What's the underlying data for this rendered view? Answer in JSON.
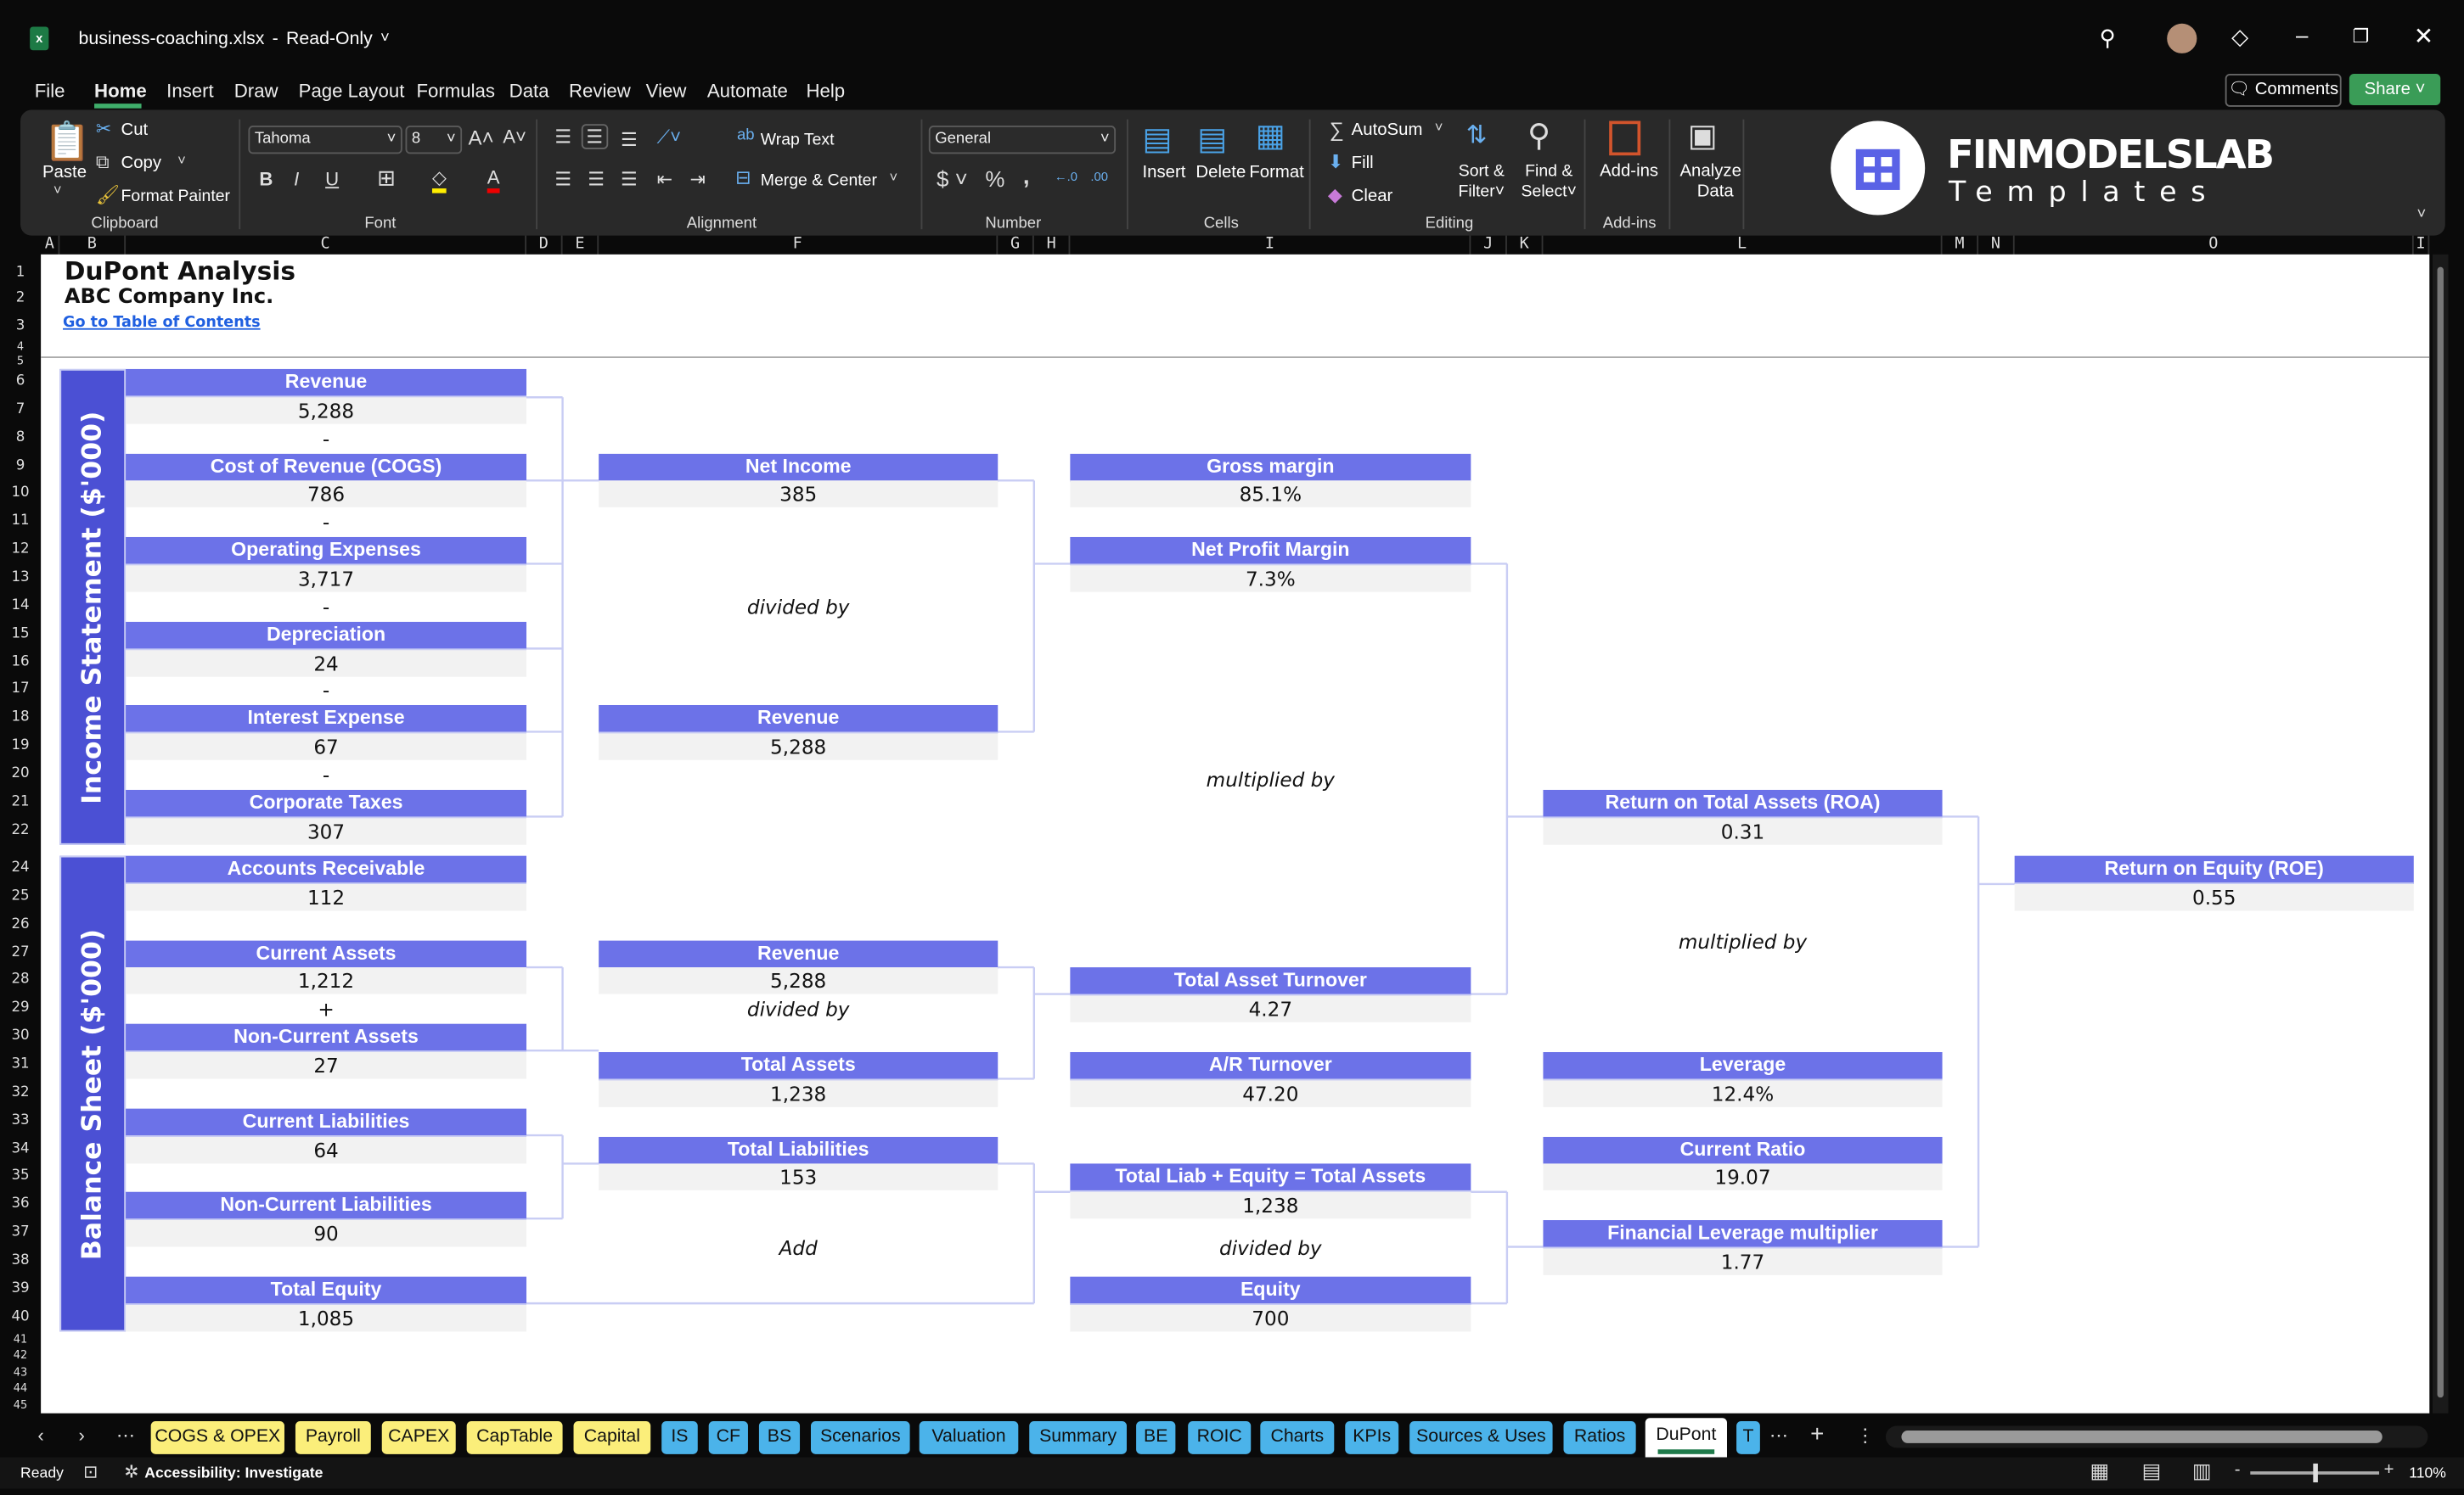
{
  "window": {
    "file_name": "business-coaching.xlsx",
    "mode": "Read-Only"
  },
  "menu": {
    "items": [
      "File",
      "Home",
      "Insert",
      "Draw",
      "Page Layout",
      "Formulas",
      "Data",
      "Review",
      "View",
      "Automate",
      "Help"
    ],
    "active": "Home",
    "comments": "Comments",
    "share": "Share"
  },
  "ribbon": {
    "clipboard": {
      "paste": "Paste",
      "cut": "Cut",
      "copy": "Copy",
      "format_painter": "Format Painter",
      "group": "Clipboard"
    },
    "font": {
      "name": "Tahoma",
      "size": "8",
      "group": "Font"
    },
    "alignment": {
      "wrap": "Wrap Text",
      "merge": "Merge & Center",
      "group": "Alignment"
    },
    "number": {
      "format": "General",
      "group": "Number"
    },
    "cells": {
      "insert": "Insert",
      "delete": "Delete",
      "format": "Format",
      "group": "Cells"
    },
    "editing": {
      "autosum": "AutoSum",
      "fill": "Fill",
      "clear": "Clear",
      "sort1": "Sort &",
      "sort2": "Filter",
      "find1": "Find &",
      "find2": "Select",
      "group": "Editing"
    },
    "addins": {
      "label": "Add-ins",
      "group": "Add-ins"
    },
    "analyze": {
      "line1": "Analyze",
      "line2": "Data"
    },
    "logo": {
      "brand": "FINMODELSLAB",
      "sub": "Templates"
    }
  },
  "columns": [
    "A",
    "B",
    "C",
    "D",
    "E",
    "F",
    "G",
    "H",
    "I",
    "J",
    "K",
    "L",
    "M",
    "N",
    "O",
    "I"
  ],
  "sheet": {
    "title": "DuPont Analysis",
    "company": "ABC Company Inc.",
    "toc_link": "Go to Table of Contents",
    "bands": {
      "income": "Income Statement ($'000)",
      "balance": "Balance Sheet ($'000)"
    },
    "boxes": [
      {
        "id": "rev",
        "label": "Revenue",
        "value": "5,288"
      },
      {
        "id": "cogs",
        "label": "Cost of Revenue (COGS)",
        "value": "786"
      },
      {
        "id": "opex",
        "label": "Operating Expenses",
        "value": "3,717"
      },
      {
        "id": "dep",
        "label": "Depreciation",
        "value": "24"
      },
      {
        "id": "int",
        "label": "Interest Expense",
        "value": "67"
      },
      {
        "id": "tax",
        "label": "Corporate Taxes",
        "value": "307"
      },
      {
        "id": "ar",
        "label": "Accounts Receivable",
        "value": "112"
      },
      {
        "id": "ca",
        "label": "Current Assets",
        "value": "1,212"
      },
      {
        "id": "nca",
        "label": "Non-Current Assets",
        "value": "27"
      },
      {
        "id": "cl",
        "label": "Current Liabilities",
        "value": "64"
      },
      {
        "id": "ncl",
        "label": "Non-Current Liabilities",
        "value": "90"
      },
      {
        "id": "te",
        "label": "Total Equity",
        "value": "1,085"
      },
      {
        "id": "ni",
        "label": "Net Income",
        "value": "385"
      },
      {
        "id": "rev2",
        "label": "Revenue",
        "value": "5,288"
      },
      {
        "id": "rev3",
        "label": "Revenue",
        "value": "5,288"
      },
      {
        "id": "ta",
        "label": "Total Assets",
        "value": "1,238"
      },
      {
        "id": "tl",
        "label": "Total Liabilities",
        "value": "153"
      },
      {
        "id": "gm",
        "label": "Gross margin",
        "value": "85.1%"
      },
      {
        "id": "npm",
        "label": "Net Profit Margin",
        "value": "7.3%"
      },
      {
        "id": "tat",
        "label": "Total Asset Turnover",
        "value": "4.27"
      },
      {
        "id": "art",
        "label": "A/R Turnover",
        "value": "47.20"
      },
      {
        "id": "tle",
        "label": "Total Liab + Equity = Total Assets",
        "value": "1,238"
      },
      {
        "id": "eq",
        "label": "Equity",
        "value": "700"
      },
      {
        "id": "roa",
        "label": "Return on Total Assets (ROA)",
        "value": "0.31"
      },
      {
        "id": "lev",
        "label": "Leverage",
        "value": "12.4%"
      },
      {
        "id": "cr",
        "label": "Current Ratio",
        "value": "19.07"
      },
      {
        "id": "flm",
        "label": "Financial Leverage multiplier",
        "value": "1.77"
      },
      {
        "id": "roe",
        "label": "Return on Equity (ROE)",
        "value": "0.55"
      }
    ],
    "notes": [
      {
        "id": "m1",
        "text": "-"
      },
      {
        "id": "m2",
        "text": "-"
      },
      {
        "id": "m3",
        "text": "-"
      },
      {
        "id": "m4",
        "text": "-"
      },
      {
        "id": "m5",
        "text": "-"
      },
      {
        "id": "p1",
        "text": "+"
      },
      {
        "id": "d1",
        "text": "divided by"
      },
      {
        "id": "d2",
        "text": "divided by"
      },
      {
        "id": "add",
        "text": "Add"
      },
      {
        "id": "x1",
        "text": "multiplied by"
      },
      {
        "id": "d3",
        "text": "divided by"
      },
      {
        "id": "x2",
        "text": "multiplied by"
      }
    ]
  },
  "tabs": [
    {
      "label": "COGS & OPEX",
      "color": "yellow"
    },
    {
      "label": "Payroll",
      "color": "yellow"
    },
    {
      "label": "CAPEX",
      "color": "yellow"
    },
    {
      "label": "CapTable",
      "color": "yellow"
    },
    {
      "label": "Capital",
      "color": "yellow"
    },
    {
      "label": "IS",
      "color": "blue"
    },
    {
      "label": "CF",
      "color": "blue"
    },
    {
      "label": "BS",
      "color": "blue"
    },
    {
      "label": "Scenarios",
      "color": "blue"
    },
    {
      "label": "Valuation",
      "color": "blue"
    },
    {
      "label": "Summary",
      "color": "blue"
    },
    {
      "label": "BE",
      "color": "blue"
    },
    {
      "label": "ROIC",
      "color": "blue"
    },
    {
      "label": "Charts",
      "color": "blue"
    },
    {
      "label": "KPIs",
      "color": "blue"
    },
    {
      "label": "Sources & Uses",
      "color": "blue"
    },
    {
      "label": "Ratios",
      "color": "blue"
    },
    {
      "label": "DuPont",
      "color": "active"
    },
    {
      "label": "T",
      "color": "blue"
    }
  ],
  "status": {
    "ready": "Ready",
    "accessibility": "Accessibility: Investigate",
    "zoom": "110%"
  },
  "colors": {
    "header_fill": "#6c72e8",
    "band_fill": "#4b50d4",
    "value_fill": "#f2f2f2",
    "connector": "#c9cdf4",
    "link": "#1f5fe0"
  }
}
